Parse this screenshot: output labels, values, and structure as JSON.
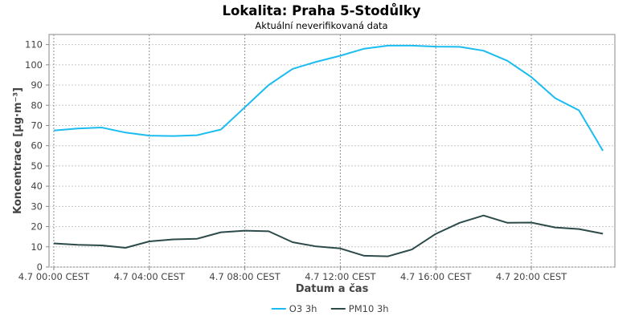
{
  "chart_data": {
    "type": "line",
    "title": "Lokalita: Praha 5-Stodůlky",
    "subtitle": "Aktuální neverifikovaná data",
    "xlabel": "Datum a čas",
    "ylabel": "Koncentrace [µg·m⁻³]",
    "ylim": [
      0,
      115
    ],
    "xlim": [
      -0.2,
      23.5
    ],
    "y_ticks": [
      0,
      10,
      20,
      30,
      40,
      50,
      60,
      70,
      80,
      90,
      100,
      110
    ],
    "x_ticks": [
      0,
      4,
      8,
      12,
      16,
      20
    ],
    "x_tick_labels": [
      "4.7 00:00 CEST",
      "4.7 04:00 CEST",
      "4.7 08:00 CEST",
      "4.7 12:00 CEST",
      "4.7 16:00 CEST",
      "4.7 20:00 CEST"
    ],
    "x": [
      0,
      1,
      2,
      3,
      4,
      5,
      6,
      7,
      8,
      9,
      10,
      11,
      12,
      13,
      14,
      15,
      16,
      17,
      18,
      19,
      20,
      21,
      22,
      23
    ],
    "grid": true,
    "legend_position": "bottom",
    "series": [
      {
        "name": "O3 3h",
        "color": "#1bbcf0",
        "values": [
          67.5,
          68.5,
          69,
          66.5,
          65,
          64.8,
          65.2,
          68,
          79,
          90,
          98,
          101.5,
          104.5,
          108,
          109.5,
          109.5,
          109,
          108.9,
          107,
          102,
          94,
          83.5,
          77.5,
          57.5
        ]
      },
      {
        "name": "PM10 3h",
        "color": "#2c4a4a",
        "values": [
          11.7,
          11,
          10.7,
          9.5,
          12.7,
          13.7,
          14,
          17.2,
          18,
          17.7,
          12.3,
          10.2,
          9.2,
          5.6,
          5.3,
          8.7,
          16.4,
          21.9,
          25.5,
          21.9,
          22,
          19.6,
          18.8,
          16.5
        ]
      }
    ]
  }
}
